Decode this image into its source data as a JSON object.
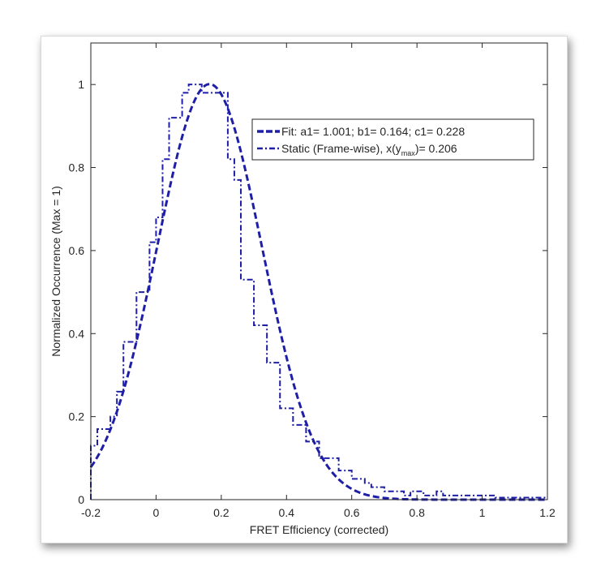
{
  "chart_data": {
    "type": "line",
    "xlabel": "FRET Efficiency (corrected)",
    "ylabel": "Normalized Occurrence (Max = 1)",
    "xlim": [
      -0.2,
      1.2
    ],
    "ylim": [
      0,
      1.1
    ],
    "xticks": [
      "-0.2",
      "0",
      "0.2",
      "0.4",
      "0.6",
      "0.8",
      "1",
      "1.2"
    ],
    "yticks": [
      "0",
      "0.2",
      "0.4",
      "0.6",
      "0.8",
      "1"
    ],
    "legend_position": "top-right",
    "series": [
      {
        "name": "Fit: a1= 1.001; b1= 0.164; c1= 0.228",
        "kind": "gaussian-fit",
        "a1": 1.001,
        "b1": 0.164,
        "c1": 0.228,
        "color": "#1e1ea6"
      },
      {
        "name": "Static (Frame-wise), x(y_max)= 0.206",
        "legend_prefix": "Static (Frame-wise), x(y",
        "legend_sub": "max",
        "legend_suffix": ")= 0.206",
        "kind": "stairs",
        "color": "#1e1ea6",
        "bin_edges": [
          -0.2,
          -0.18,
          -0.14,
          -0.12,
          -0.1,
          -0.06,
          -0.02,
          0.0,
          0.02,
          0.04,
          0.06,
          0.08,
          0.1,
          0.12,
          0.14,
          0.18,
          0.22,
          0.24,
          0.26,
          0.3,
          0.32,
          0.34,
          0.36,
          0.38,
          0.4,
          0.42,
          0.44,
          0.46,
          0.48,
          0.5,
          0.52,
          0.54,
          0.56,
          0.58,
          0.6,
          0.62,
          0.64,
          0.66,
          0.68,
          0.7,
          0.74,
          0.76,
          0.78,
          0.82,
          0.86,
          0.88,
          0.94,
          0.96,
          1.0,
          1.02,
          1.04,
          1.06,
          1.1,
          1.14,
          1.2
        ],
        "values": [
          0.13,
          0.17,
          0.2,
          0.26,
          0.38,
          0.5,
          0.62,
          0.68,
          0.82,
          0.92,
          0.92,
          0.98,
          1.0,
          1.0,
          0.98,
          0.98,
          0.82,
          0.77,
          0.53,
          0.42,
          0.42,
          0.33,
          0.33,
          0.22,
          0.22,
          0.18,
          0.18,
          0.14,
          0.14,
          0.1,
          0.1,
          0.1,
          0.07,
          0.07,
          0.05,
          0.05,
          0.04,
          0.03,
          0.03,
          0.02,
          0.02,
          0.01,
          0.02,
          0.01,
          0.02,
          0.01,
          0.01,
          0.01,
          0.01,
          0.01,
          0.005,
          0.005,
          0.005,
          0.005
        ]
      }
    ]
  }
}
